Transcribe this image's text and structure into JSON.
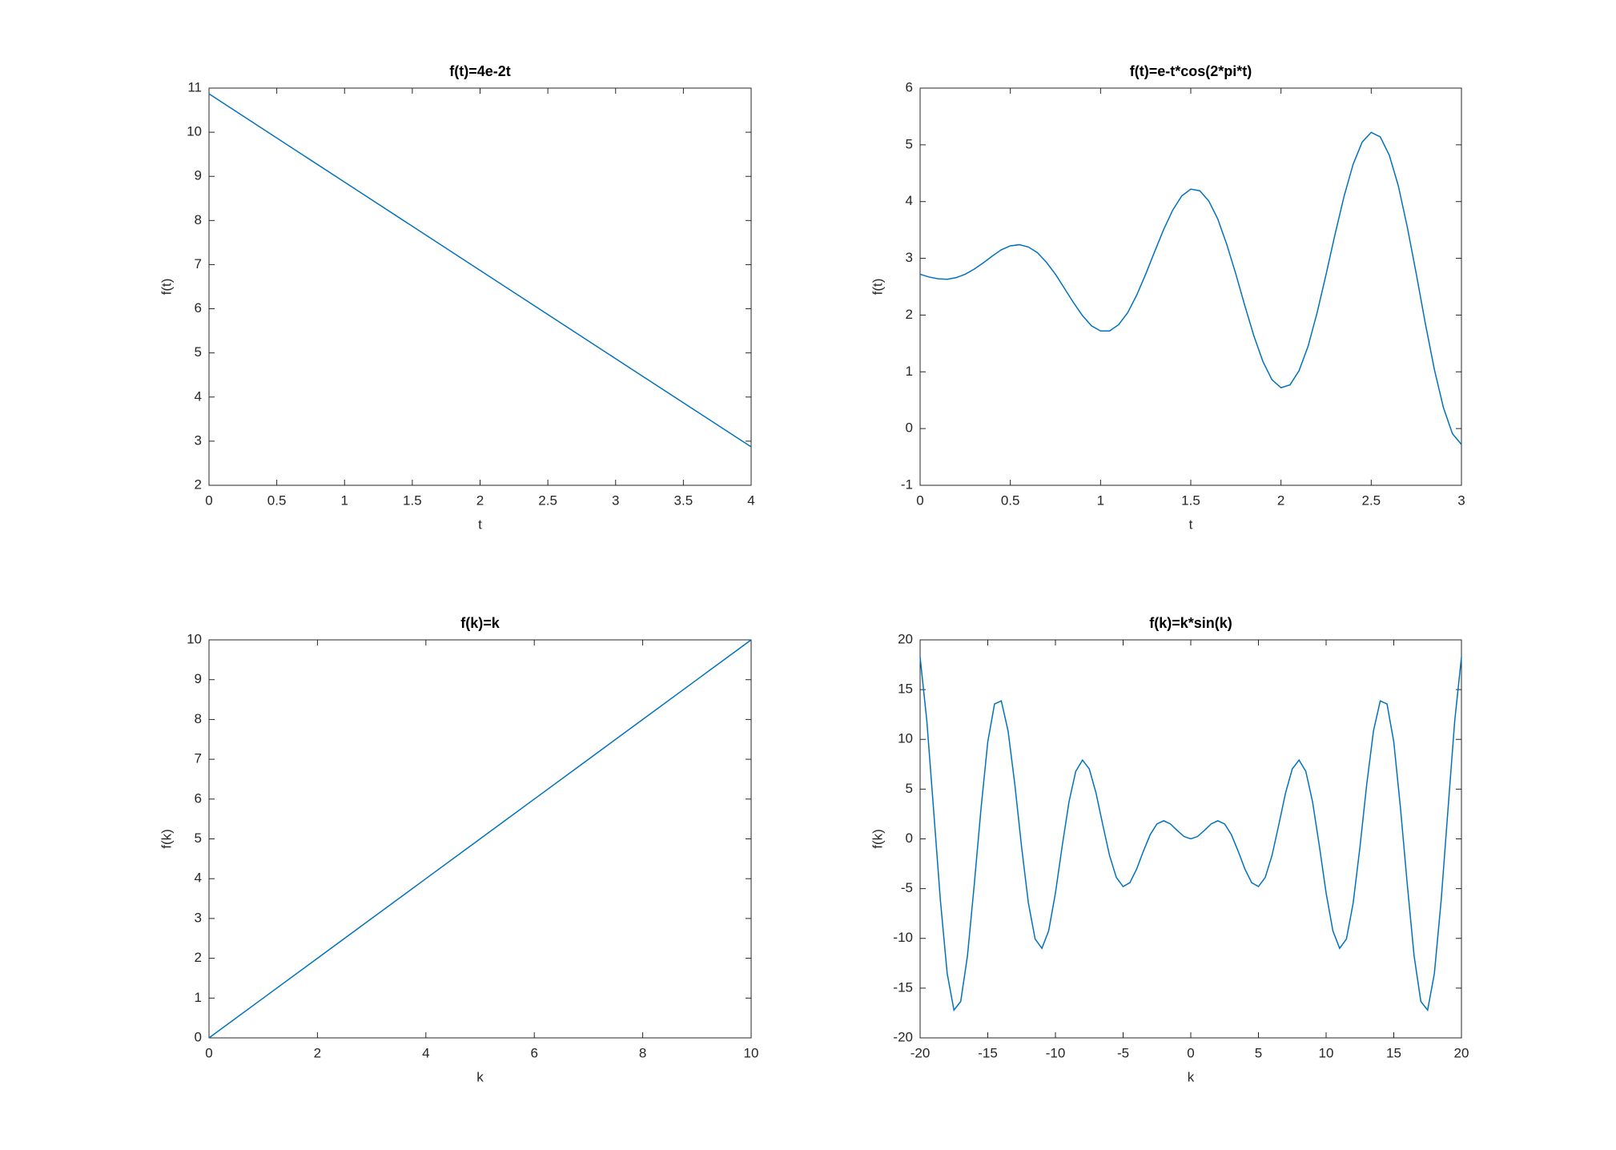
{
  "chart_data": [
    {
      "type": "line",
      "title": "f(t)=4e-2t",
      "xlabel": "t",
      "ylabel": "f(t)",
      "x": [
        0,
        1,
        2,
        3,
        4
      ],
      "series": [
        {
          "color": "#0072bd",
          "values": [
            10.87,
            8.87,
            6.87,
            4.87,
            2.87
          ]
        }
      ],
      "xlim": [
        0,
        4
      ],
      "ylim": [
        2,
        11
      ],
      "xticks": [
        0,
        0.5,
        1,
        1.5,
        2,
        2.5,
        3,
        3.5,
        4
      ],
      "yticks": [
        2,
        3,
        4,
        5,
        6,
        7,
        8,
        9,
        10,
        11
      ]
    },
    {
      "type": "line",
      "title": "f(t)=e-t*cos(2*pi*t)",
      "xlabel": "t",
      "ylabel": "f(t)",
      "x": [
        0,
        0.05,
        0.1,
        0.15,
        0.2,
        0.25,
        0.3,
        0.35,
        0.4,
        0.45,
        0.5,
        0.55,
        0.6,
        0.65,
        0.7,
        0.75,
        0.8,
        0.85,
        0.9,
        0.95,
        1,
        1.05,
        1.1,
        1.15,
        1.2,
        1.25,
        1.3,
        1.35,
        1.4,
        1.45,
        1.5,
        1.55,
        1.6,
        1.65,
        1.7,
        1.75,
        1.8,
        1.85,
        1.9,
        1.95,
        2,
        2.05,
        2.1,
        2.15,
        2.2,
        2.25,
        2.3,
        2.35,
        2.4,
        2.45,
        2.5,
        2.55,
        2.6,
        2.65,
        2.7,
        2.75,
        2.8,
        2.85,
        2.9,
        2.95,
        3
      ],
      "series": [
        {
          "color": "#0072bd",
          "values": [
            2.72,
            2.67,
            2.64,
            2.63,
            2.66,
            2.72,
            2.81,
            2.92,
            3.04,
            3.15,
            3.22,
            3.24,
            3.2,
            3.1,
            2.93,
            2.72,
            2.47,
            2.22,
            1.99,
            1.81,
            1.72,
            1.72,
            1.83,
            2.04,
            2.35,
            2.72,
            3.12,
            3.51,
            3.85,
            4.1,
            4.22,
            4.19,
            4.01,
            3.69,
            3.24,
            2.72,
            2.16,
            1.63,
            1.18,
            0.86,
            0.72,
            0.77,
            1.02,
            1.45,
            2.04,
            2.72,
            3.43,
            4.1,
            4.66,
            5.05,
            5.22,
            5.14,
            4.82,
            4.28,
            3.55,
            2.72,
            1.85,
            1.04,
            0.37,
            -0.09,
            -0.28
          ]
        }
      ],
      "xlim": [
        0,
        3
      ],
      "ylim": [
        -1,
        6
      ],
      "xticks": [
        0,
        0.5,
        1,
        1.5,
        2,
        2.5,
        3
      ],
      "yticks": [
        -1,
        0,
        1,
        2,
        3,
        4,
        5,
        6
      ]
    },
    {
      "type": "line",
      "title": "f(k)=k",
      "xlabel": "k",
      "ylabel": "f(k)",
      "x": [
        0,
        1,
        2,
        3,
        4,
        5,
        6,
        7,
        8,
        9,
        10
      ],
      "series": [
        {
          "color": "#0072bd",
          "values": [
            0,
            1,
            2,
            3,
            4,
            5,
            6,
            7,
            8,
            9,
            10
          ]
        }
      ],
      "xlim": [
        0,
        10
      ],
      "ylim": [
        0,
        10
      ],
      "xticks": [
        0,
        2,
        4,
        6,
        8,
        10
      ],
      "yticks": [
        0,
        1,
        2,
        3,
        4,
        5,
        6,
        7,
        8,
        9,
        10
      ]
    },
    {
      "type": "line",
      "title": "f(k)=k*sin(k)",
      "xlabel": "k",
      "ylabel": "f(k)",
      "x": [
        -20,
        -19.5,
        -19,
        -18.5,
        -18,
        -17.5,
        -17,
        -16.5,
        -16,
        -15.5,
        -15,
        -14.5,
        -14,
        -13.5,
        -13,
        -12.5,
        -12,
        -11.5,
        -11,
        -10.5,
        -10,
        -9.5,
        -9,
        -8.5,
        -8,
        -7.5,
        -7,
        -6.5,
        -6,
        -5.5,
        -5,
        -4.5,
        -4,
        -3.5,
        -3,
        -2.5,
        -2,
        -1.5,
        -1,
        -0.5,
        0,
        0.5,
        1,
        1.5,
        2,
        2.5,
        3,
        3.5,
        4,
        4.5,
        5,
        5.5,
        6,
        6.5,
        7,
        7.5,
        8,
        8.5,
        9,
        9.5,
        10,
        10.5,
        11,
        11.5,
        12,
        12.5,
        13,
        13.5,
        14,
        14.5,
        15,
        15.5,
        16,
        16.5,
        17,
        17.5,
        18,
        18.5,
        19,
        19.5,
        20
      ],
      "series": [
        {
          "color": "#0072bd",
          "values": [
            18.26,
            11.81,
            2.85,
            -6.2,
            -13.52,
            -17.21,
            -16.34,
            -11.75,
            -4.61,
            3.03,
            9.75,
            13.56,
            13.87,
            10.85,
            5.46,
            -0.83,
            -6.44,
            -10.07,
            -11,
            -9.24,
            -5.44,
            -0.71,
            3.71,
            6.79,
            7.92,
            7.03,
            4.6,
            1.4,
            -1.68,
            -3.88,
            -4.79,
            -4.4,
            -3.03,
            -1.23,
            0.42,
            1.5,
            1.82,
            1.5,
            0.84,
            0.24,
            0,
            0.24,
            0.84,
            1.5,
            1.82,
            1.5,
            0.42,
            -1.23,
            -3.03,
            -4.4,
            -4.79,
            -3.88,
            -1.68,
            1.4,
            4.6,
            7.03,
            7.92,
            6.79,
            3.71,
            -0.71,
            -5.44,
            -9.24,
            -11,
            -10.07,
            -6.44,
            -0.83,
            5.46,
            10.85,
            13.87,
            13.56,
            9.75,
            3.03,
            -4.61,
            -11.75,
            -16.34,
            -17.21,
            -13.52,
            -6.2,
            2.85,
            11.81,
            18.26
          ]
        }
      ],
      "xlim": [
        -20,
        20
      ],
      "ylim": [
        -20,
        20
      ],
      "xticks": [
        -20,
        -15,
        -10,
        -5,
        0,
        5,
        10,
        15,
        20
      ],
      "yticks": [
        -20,
        -15,
        -10,
        -5,
        0,
        5,
        10,
        15,
        20
      ]
    }
  ]
}
